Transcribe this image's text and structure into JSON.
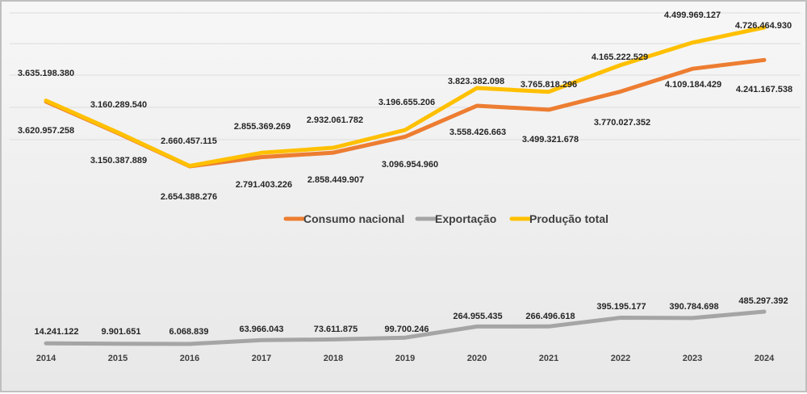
{
  "chart_data": {
    "type": "line",
    "title": "",
    "xlabel": "",
    "ylabel": "",
    "categories": [
      "2014",
      "2015",
      "2016",
      "2017",
      "2018",
      "2019",
      "2020",
      "2021",
      "2022",
      "2023",
      "2024"
    ],
    "series": [
      {
        "name": "Consumo nacional",
        "color": "#ed7d31",
        "values": [
          3620957258,
          3150387889,
          2654388276,
          2791403226,
          2858449907,
          3096954960,
          3558426663,
          3499321678,
          3770027352,
          4109184429,
          4241167538
        ],
        "labels": [
          "3.620.957.258",
          "3.150.387.889",
          "2.654.388.276",
          "2.791.403.226",
          "2.858.449.907",
          "3.096.954.960",
          "3.558.426.663",
          "3.499.321.678",
          "3.770.027.352",
          "4.109.184.429",
          "4.241.167.538"
        ]
      },
      {
        "name": "Exportação",
        "color": "#a5a5a5",
        "values": [
          14241122,
          9901651,
          6068839,
          63966043,
          73611875,
          99700246,
          264955435,
          266496618,
          395195177,
          390784698,
          485297392
        ],
        "labels": [
          "14.241.122",
          "9.901.651",
          "6.068.839",
          "63.966.043",
          "73.611.875",
          "99.700.246",
          "264.955.435",
          "266.496.618",
          "395.195.177",
          "390.784.698",
          "485.297.392"
        ]
      },
      {
        "name": "Produção total",
        "color": "#ffc000",
        "values": [
          3635198380,
          3160289540,
          2660457115,
          2855369269,
          2932061782,
          3196655206,
          3823382098,
          3765818296,
          4165222529,
          4499969127,
          4726464930
        ],
        "labels": [
          "3.635.198.380",
          "3.160.289.540",
          "2.660.457.115",
          "2.855.369.269",
          "2.932.061.782",
          "3.196.655.206",
          "3.823.382.098",
          "3.765.818.296",
          "4.165.222.529",
          "4.499.969.127",
          "4.726.464.930"
        ]
      }
    ],
    "legend_position": "middle",
    "grid": true
  }
}
